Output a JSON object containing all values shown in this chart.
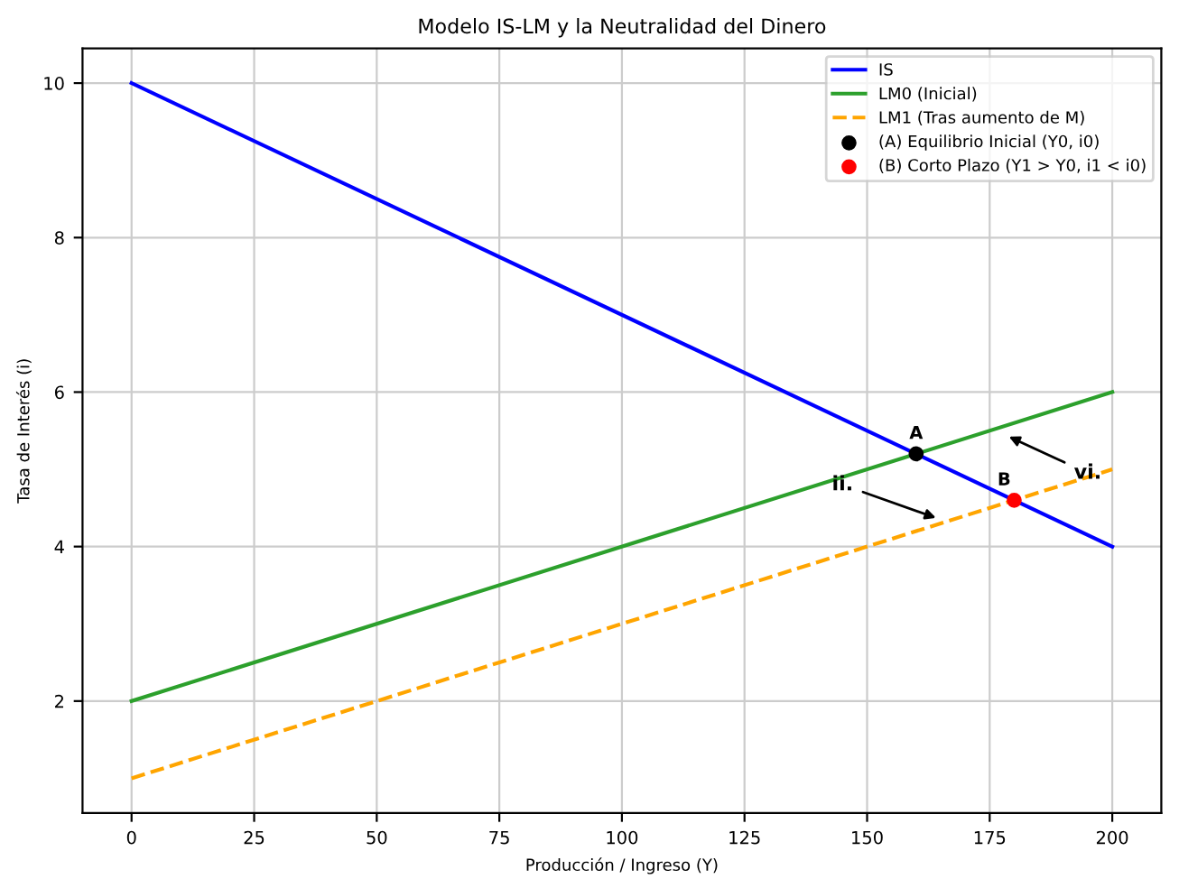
{
  "chart_data": {
    "type": "line",
    "title": "Modelo IS-LM y la Neutralidad del Dinero",
    "xlabel": "Producción / Ingreso (Y)",
    "ylabel": "Tasa de Interés (i)",
    "xlim": [
      -10,
      210
    ],
    "ylim": [
      0.55,
      10.45
    ],
    "xticks": [
      0,
      25,
      50,
      75,
      100,
      125,
      150,
      175,
      200
    ],
    "yticks": [
      2,
      4,
      6,
      8,
      10
    ],
    "grid": true,
    "legend": "top right",
    "series": [
      {
        "name": "IS",
        "color": "#0000ff",
        "x": [
          0,
          200
        ],
        "values": [
          10,
          4
        ],
        "line_style": "solid"
      },
      {
        "name": "LM0 (Inicial)",
        "color": "#2ca02c",
        "x": [
          0,
          200
        ],
        "values": [
          2,
          6
        ],
        "line_style": "solid"
      },
      {
        "name": "LM1 (Tras aumento de M)",
        "color": "#ffa500",
        "x": [
          0,
          200
        ],
        "values": [
          1,
          5
        ],
        "line_style": "dashed"
      },
      {
        "name": "(A) Equilibrio Inicial (Y0, i0)",
        "type": "scatter",
        "color": "#000000",
        "x": [
          160
        ],
        "values": [
          5.2
        ],
        "marker": "circle"
      },
      {
        "name": "(B) Corto Plazo (Y1 > Y0, i1 < i0)",
        "type": "scatter",
        "color": "#ff0000",
        "x": [
          180
        ],
        "values": [
          4.6
        ],
        "marker": "circle"
      }
    ],
    "annotations": [
      {
        "text": "A",
        "x": 160,
        "y": 5.2
      },
      {
        "text": "B",
        "x": 180,
        "y": 4.6
      },
      {
        "text": "ii.",
        "x": 165,
        "y": 4.35
      },
      {
        "text": "vi.",
        "x": 178,
        "y": 5.45
      }
    ]
  }
}
